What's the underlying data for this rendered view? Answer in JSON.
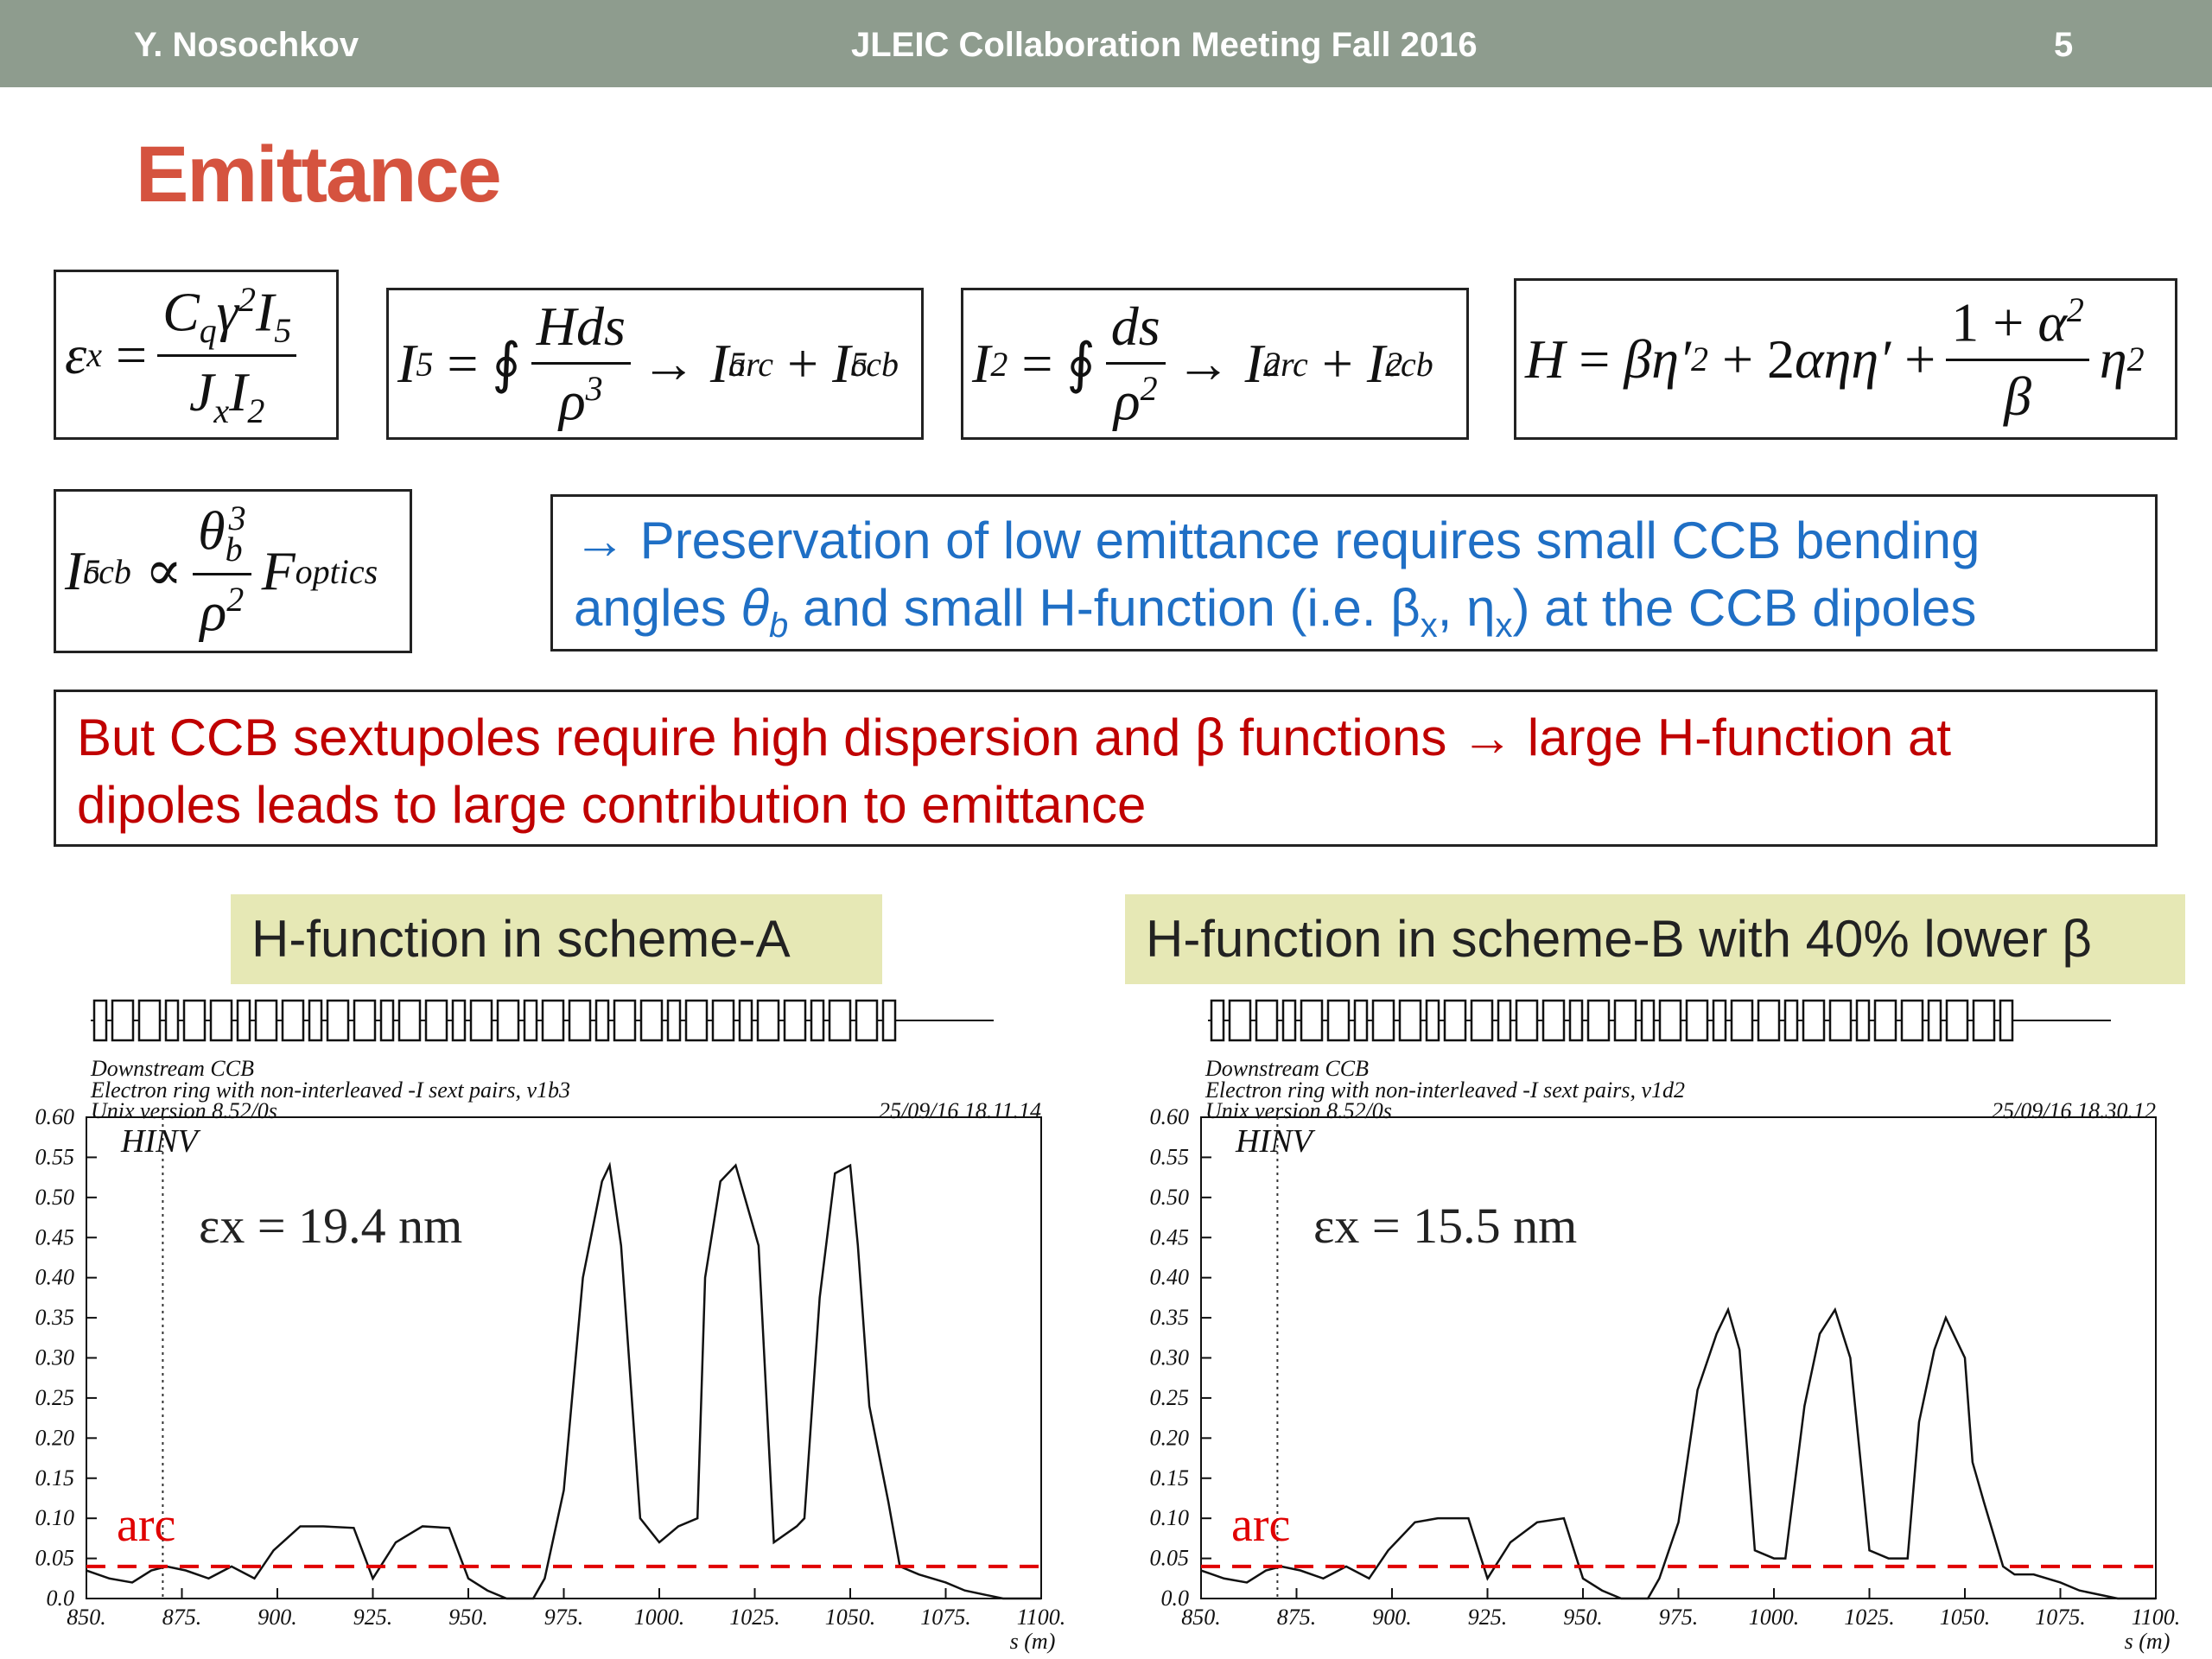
{
  "header": {
    "author": "Y. Nosochkov",
    "meeting": "JLEIC Collaboration Meeting Fall 2016",
    "page_number": "5"
  },
  "slide_title": "Emittance",
  "equations": {
    "emittance": "εx = Cq γ² I5 / (Jx I2)",
    "i5": "I5 = ∮ H ds / ρ³ → I5arc + I5ccb",
    "i2": "I2 = ∮ ds / ρ² → I2arc + I2ccb",
    "h_function": "H = βη'² + 2αηη' + (1+α²)/β η²",
    "i5ccb": "I5ccb ∝ θb³ / ρ² Foptics"
  },
  "note_blue": {
    "line1": "→ Preservation of low emittance requires small CCB bending",
    "line2_pre": "angles ",
    "line2_theta": "θ",
    "line2_theta_sub": "b",
    "line2_mid": " and small H-function (i.e. β",
    "line2_x1": "x",
    "line2_mid2": ", η",
    "line2_x2": "x",
    "line2_end": ") at the CCB dipoles"
  },
  "note_red": {
    "line1": "But CCB sextupoles require high dispersion and β functions → large H-function at",
    "line2": "dipoles leads to large contribution to emittance"
  },
  "panels": [
    {
      "label": "H-function in scheme-A",
      "emittance_label": "εx = 19.4 nm",
      "arc_label": "arc",
      "subtitle1": "Downstream CCB",
      "subtitle2": "Electron ring with non-interleaved -I sext pairs, v1b3",
      "subtitle3": "Unix version 8.52/0s",
      "timestamp": "25/09/16  18.11.14",
      "ylabel": "HINV"
    },
    {
      "label": "H-function in scheme-B with 40% lower β",
      "emittance_label": "εx = 15.5 nm",
      "arc_label": "arc",
      "subtitle1": "Downstream CCB",
      "subtitle2": "Electron ring with non-interleaved -I sext pairs, v1d2",
      "subtitle3": "Unix version 8.52/0s",
      "timestamp": "25/09/16  18.30.12",
      "ylabel": "HINV"
    }
  ],
  "chart_data": [
    {
      "type": "line",
      "title": "",
      "xlabel": "s (m)",
      "ylabel": "HINV",
      "xlim": [
        850,
        1100
      ],
      "ylim": [
        0,
        0.6
      ],
      "xticks": [
        "850.",
        "875.",
        "900.",
        "925.",
        "950.",
        "975.",
        "1000.",
        "1025.",
        "1050.",
        "1075.",
        "1100."
      ],
      "yticks": [
        "0.0",
        "0.05",
        "0.10",
        "0.15",
        "0.20",
        "0.25",
        "0.30",
        "0.35",
        "0.40",
        "0.45",
        "0.50",
        "0.55",
        "0.60"
      ],
      "series": [
        {
          "x": [
            850,
            856,
            862,
            867,
            871,
            876,
            882,
            888,
            894,
            899,
            906,
            912,
            920,
            925,
            931,
            938,
            945,
            950,
            955,
            960,
            967,
            970,
            975,
            980,
            985,
            987,
            990,
            995,
            1000,
            1005,
            1010,
            1012,
            1016,
            1020,
            1026,
            1030,
            1036,
            1038,
            1042,
            1046,
            1050,
            1052,
            1055,
            1060,
            1063,
            1068,
            1075,
            1080,
            1090,
            1100
          ],
          "y": [
            0.035,
            0.025,
            0.02,
            0.035,
            0.04,
            0.035,
            0.025,
            0.04,
            0.025,
            0.06,
            0.09,
            0.09,
            0.088,
            0.025,
            0.07,
            0.09,
            0.088,
            0.025,
            0.01,
            0.0,
            0.0,
            0.025,
            0.135,
            0.4,
            0.52,
            0.54,
            0.44,
            0.1,
            0.07,
            0.09,
            0.1,
            0.4,
            0.52,
            0.54,
            0.44,
            0.07,
            0.09,
            0.1,
            0.375,
            0.53,
            0.54,
            0.44,
            0.24,
            0.12,
            0.04,
            0.03,
            0.02,
            0.01,
            0.0,
            0.0
          ]
        },
        {
          "name": "arc",
          "type": "dashed",
          "x": [
            850,
            1100
          ],
          "y": [
            0.04,
            0.04
          ]
        }
      ]
    },
    {
      "type": "line",
      "title": "",
      "xlabel": "s (m)",
      "ylabel": "HINV",
      "xlim": [
        850,
        1100
      ],
      "ylim": [
        0,
        0.6
      ],
      "xticks": [
        "850.",
        "875.",
        "900.",
        "925.",
        "950.",
        "975.",
        "1000.",
        "1025.",
        "1050.",
        "1075.",
        "1100."
      ],
      "yticks": [
        "0.0",
        "0.05",
        "0.10",
        "0.15",
        "0.20",
        "0.25",
        "0.30",
        "0.35",
        "0.40",
        "0.45",
        "0.50",
        "0.55",
        "0.60"
      ],
      "series": [
        {
          "x": [
            850,
            856,
            862,
            867,
            871,
            876,
            882,
            888,
            894,
            899,
            906,
            912,
            920,
            925,
            931,
            938,
            945,
            950,
            955,
            960,
            967,
            970,
            975,
            980,
            985,
            988,
            991,
            995,
            1000,
            1003,
            1008,
            1012,
            1016,
            1020,
            1025,
            1030,
            1035,
            1038,
            1042,
            1045,
            1050,
            1052,
            1055,
            1060,
            1063,
            1068,
            1075,
            1080,
            1090,
            1100
          ],
          "y": [
            0.035,
            0.025,
            0.02,
            0.035,
            0.04,
            0.035,
            0.025,
            0.04,
            0.025,
            0.06,
            0.095,
            0.1,
            0.1,
            0.025,
            0.07,
            0.095,
            0.1,
            0.025,
            0.01,
            0.0,
            0.0,
            0.025,
            0.095,
            0.26,
            0.33,
            0.36,
            0.31,
            0.06,
            0.05,
            0.05,
            0.24,
            0.33,
            0.36,
            0.3,
            0.06,
            0.05,
            0.05,
            0.22,
            0.31,
            0.35,
            0.3,
            0.17,
            0.12,
            0.04,
            0.03,
            0.03,
            0.02,
            0.01,
            0.0,
            0.0
          ]
        },
        {
          "name": "arc",
          "type": "dashed",
          "x": [
            850,
            1100
          ],
          "y": [
            0.04,
            0.04
          ]
        }
      ]
    }
  ],
  "colors": {
    "header_bg": "#8e9c8e",
    "title": "#d5533f",
    "blue_note": "#1f6fc5",
    "red_note": "#c00000",
    "label_bg": "#e6e8b5",
    "arc_line": "#e00000"
  }
}
